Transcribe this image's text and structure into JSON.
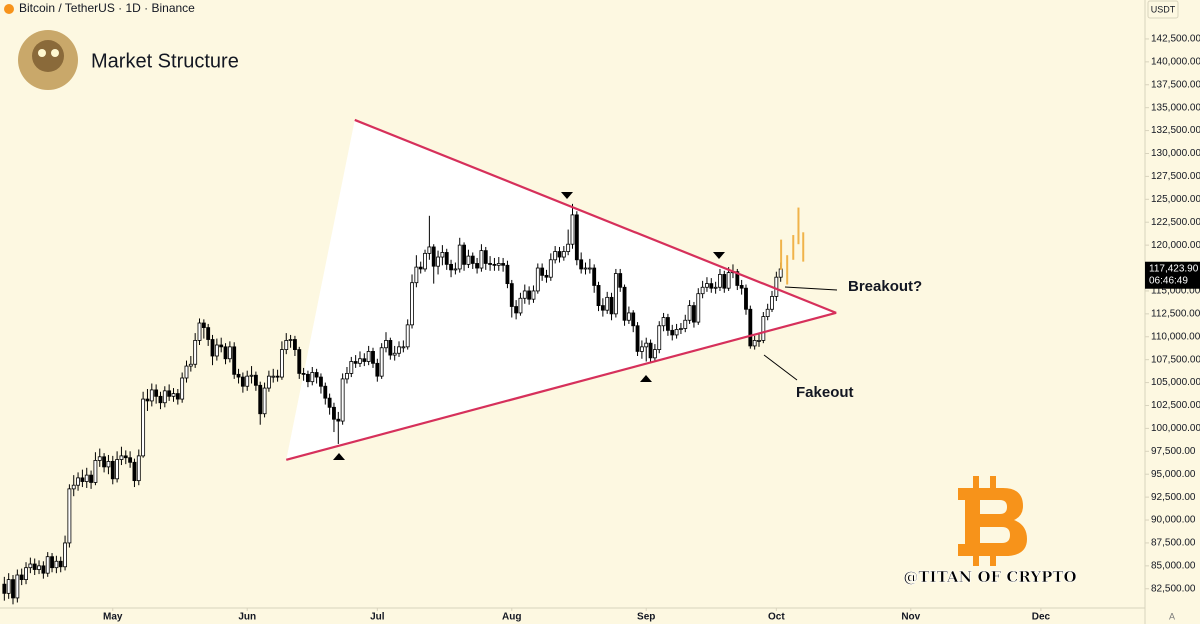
{
  "chart_data": {
    "type": "candlestick",
    "header": "Bitcoin / TetherUS · 1D · Binance",
    "title": "Market Structure",
    "currency": "USDT",
    "up_color": "#ffffff",
    "down_color": "#000000",
    "wick_color": "#000000",
    "background": "#fdf8e1",
    "grid": false,
    "xlim": [
      95,
      359
    ],
    "xticks": [
      {
        "value": 121,
        "label": "May"
      },
      {
        "value": 152,
        "label": "Jun"
      },
      {
        "value": 182,
        "label": "Jul"
      },
      {
        "value": 213,
        "label": "Aug"
      },
      {
        "value": 244,
        "label": "Sep"
      },
      {
        "value": 274,
        "label": "Oct"
      },
      {
        "value": 305,
        "label": "Nov"
      },
      {
        "value": 335,
        "label": "Dec"
      }
    ],
    "ylim": [
      80400,
      146750
    ],
    "yticks": [
      {
        "value": 82500,
        "label": "82,500.00"
      },
      {
        "value": 85000,
        "label": "85,000.00"
      },
      {
        "value": 87500,
        "label": "87,500.00"
      },
      {
        "value": 90000,
        "label": "90,000.00"
      },
      {
        "value": 92500,
        "label": "92,500.00"
      },
      {
        "value": 95000,
        "label": "95,000.00"
      },
      {
        "value": 97500,
        "label": "97,500.00"
      },
      {
        "value": 100000,
        "label": "100,000.00"
      },
      {
        "value": 102500,
        "label": "102,500.00"
      },
      {
        "value": 105000,
        "label": "105,000.00"
      },
      {
        "value": 107500,
        "label": "107,500.00"
      },
      {
        "value": 110000,
        "label": "110,000.00"
      },
      {
        "value": 112500,
        "label": "112,500.00"
      },
      {
        "value": 115000,
        "label": "115,000.00"
      },
      {
        "value": 117500,
        "label": "117,500.00"
      },
      {
        "value": 120000,
        "label": "120,000.00"
      },
      {
        "value": 122500,
        "label": "122,500.00"
      },
      {
        "value": 125000,
        "label": "125,000.00"
      },
      {
        "value": 127500,
        "label": "127,500.00"
      },
      {
        "value": 130000,
        "label": "130,000.00"
      },
      {
        "value": 132500,
        "label": "132,500.00"
      },
      {
        "value": 135000,
        "label": "135,000.00"
      },
      {
        "value": 137500,
        "label": "137,500.00"
      },
      {
        "value": 140000,
        "label": "140,000.00"
      },
      {
        "value": 142500,
        "label": "142,500.00"
      }
    ],
    "x": [
      96,
      97,
      98,
      99,
      100,
      101,
      102,
      103,
      104,
      105,
      106,
      107,
      108,
      109,
      110,
      111,
      112,
      113,
      114,
      115,
      116,
      117,
      118,
      119,
      120,
      121,
      122,
      123,
      124,
      125,
      126,
      127,
      128,
      129,
      130,
      131,
      132,
      133,
      134,
      135,
      136,
      137,
      138,
      139,
      140,
      141,
      142,
      143,
      144,
      145,
      146,
      147,
      148,
      149,
      150,
      151,
      152,
      153,
      154,
      155,
      156,
      157,
      158,
      159,
      160,
      161,
      162,
      163,
      164,
      165,
      166,
      167,
      168,
      169,
      170,
      171,
      172,
      173,
      174,
      175,
      176,
      177,
      178,
      179,
      180,
      181,
      182,
      183,
      184,
      185,
      186,
      187,
      188,
      189,
      190,
      191,
      192,
      193,
      194,
      195,
      196,
      197,
      198,
      199,
      200,
      201,
      202,
      203,
      204,
      205,
      206,
      207,
      208,
      209,
      210,
      211,
      212,
      213,
      214,
      215,
      216,
      217,
      218,
      219,
      220,
      221,
      222,
      223,
      224,
      225,
      226,
      227,
      228,
      229,
      230,
      231,
      232,
      233,
      234,
      235,
      236,
      237,
      238,
      239,
      240,
      241,
      242,
      243,
      244,
      245,
      246,
      247,
      248,
      249,
      250,
      251,
      252,
      253,
      254,
      255,
      256,
      257,
      258,
      259,
      260,
      261,
      262,
      263,
      264,
      265,
      266,
      267,
      268,
      269,
      270,
      271,
      272,
      273,
      274,
      275
    ],
    "open": [
      83000,
      82000,
      83500,
      81500,
      84000,
      83500,
      84800,
      85200,
      84600,
      85000,
      84200,
      86000,
      84800,
      85500,
      84900,
      87500,
      93400,
      93800,
      94600,
      94200,
      94900,
      94100,
      96500,
      96900,
      95800,
      96400,
      94500,
      96600,
      97000,
      96800,
      96300,
      94300,
      97000,
      103200,
      103000,
      104200,
      103500,
      102800,
      104100,
      103500,
      103800,
      103200,
      105500,
      106800,
      107000,
      109600,
      111500,
      111000,
      109700,
      107900,
      109100,
      108900,
      107600,
      108900,
      105900,
      105600,
      104600,
      105700,
      105800,
      104700,
      101600,
      104400,
      105700,
      105700,
      105600,
      108600,
      109600,
      109700,
      108600,
      106000,
      105900,
      105100,
      106100,
      105600,
      104600,
      103300,
      102300,
      101000,
      100800,
      105400,
      106000,
      107300,
      107100,
      107600,
      107300,
      108400,
      107100,
      105700,
      108800,
      109600,
      108000,
      108200,
      108900,
      108900,
      111300,
      115900,
      117600,
      117400,
      119100,
      119800,
      117700,
      118700,
      119200,
      117900,
      117300,
      117400,
      120000,
      117900,
      118800,
      118000,
      117500,
      119400,
      118000,
      117900,
      117800,
      118000,
      117800,
      115800,
      113300,
      112600,
      114200,
      115000,
      114100,
      115000,
      117500,
      116700,
      116500,
      118400,
      119300,
      118700,
      119300,
      120100,
      123300,
      118400,
      117400,
      117500,
      117500,
      115600,
      113400,
      112900,
      114300,
      112500,
      116900,
      115400,
      111800,
      112600,
      111200,
      108400,
      108900,
      109300,
      107700,
      108600,
      111200,
      112100,
      110700,
      110200,
      110800,
      110900,
      111800,
      113400,
      111600,
      114700,
      115400,
      115800,
      115300,
      115400,
      116800,
      115300,
      117000,
      117100,
      115600,
      115300,
      113000,
      109000,
      109600,
      109600,
      112200,
      113000,
      114400,
      116500
    ],
    "high": [
      83800,
      84200,
      84000,
      84600,
      84700,
      85400,
      85900,
      85800,
      85600,
      85500,
      86500,
      86400,
      86100,
      86000,
      88300,
      93900,
      94900,
      95200,
      95500,
      95700,
      95400,
      97400,
      97800,
      97300,
      97100,
      97000,
      97500,
      98000,
      97600,
      97500,
      96700,
      97700,
      104000,
      104300,
      104900,
      104800,
      104000,
      104600,
      104800,
      104400,
      104300,
      106100,
      107400,
      107900,
      110400,
      112000,
      111900,
      111400,
      110200,
      109800,
      109900,
      109300,
      109500,
      109400,
      106500,
      106100,
      106300,
      106800,
      106200,
      105100,
      105000,
      106300,
      106500,
      106400,
      109500,
      110400,
      110200,
      110100,
      108900,
      106600,
      106300,
      106700,
      106500,
      106000,
      105000,
      103800,
      102800,
      101800,
      106000,
      106700,
      107800,
      108000,
      108400,
      108200,
      109000,
      108800,
      107600,
      109300,
      110500,
      109900,
      109000,
      109500,
      109600,
      111900,
      116800,
      118900,
      118200,
      119500,
      123200,
      120100,
      119400,
      120000,
      119600,
      118400,
      118100,
      120800,
      120300,
      119500,
      119200,
      118600,
      120100,
      119800,
      118800,
      118600,
      118700,
      118600,
      118300,
      116200,
      114000,
      114800,
      115700,
      115500,
      115600,
      118000,
      118000,
      117300,
      119100,
      119900,
      119800,
      119900,
      121700,
      124500,
      123700,
      119200,
      118100,
      118500,
      117900,
      116000,
      114200,
      114900,
      114800,
      117400,
      117400,
      115700,
      113300,
      112900,
      111600,
      109600,
      109900,
      109700,
      109200,
      111700,
      112600,
      112500,
      111300,
      111400,
      111500,
      112400,
      114000,
      113800,
      115300,
      116100,
      116500,
      116400,
      116000,
      117400,
      117200,
      117600,
      117900,
      117400,
      116200,
      115700,
      113400,
      110100,
      110400,
      112700,
      113600,
      115000,
      117100,
      118100
    ],
    "low": [
      81200,
      81400,
      80800,
      81000,
      82900,
      83000,
      84200,
      84000,
      84100,
      83600,
      83800,
      84300,
      84200,
      84300,
      84500,
      87000,
      92600,
      93200,
      93600,
      93500,
      93400,
      93800,
      95800,
      95200,
      95000,
      93900,
      94100,
      96000,
      96100,
      95700,
      93600,
      93800,
      96800,
      101900,
      102400,
      102700,
      102100,
      102300,
      103000,
      102900,
      102600,
      102800,
      105000,
      106200,
      106600,
      109100,
      109800,
      109000,
      106900,
      107400,
      108300,
      107000,
      107200,
      105400,
      104900,
      103900,
      104100,
      104900,
      104100,
      100400,
      101200,
      104000,
      105000,
      105100,
      105300,
      108100,
      108800,
      107900,
      105400,
      105200,
      104500,
      104700,
      104900,
      103800,
      102600,
      101500,
      99600,
      98300,
      100400,
      104900,
      105600,
      106600,
      106700,
      106800,
      106900,
      106600,
      105100,
      105400,
      108300,
      107500,
      107400,
      107800,
      108300,
      108600,
      110900,
      115400,
      116900,
      117100,
      118400,
      115800,
      116800,
      117800,
      117300,
      116500,
      116800,
      117000,
      117200,
      117500,
      117400,
      116900,
      117100,
      117300,
      117200,
      117200,
      117200,
      117100,
      115300,
      112100,
      111900,
      112300,
      113600,
      113500,
      113700,
      114700,
      116100,
      115900,
      116100,
      118000,
      118100,
      118300,
      118900,
      119600,
      117800,
      116900,
      116800,
      116900,
      114800,
      112800,
      112200,
      112500,
      111800,
      112100,
      114900,
      111200,
      111400,
      110500,
      107900,
      107600,
      107300,
      107300,
      107300,
      108200,
      110600,
      110100,
      109600,
      109800,
      110300,
      110500,
      111400,
      111000,
      111300,
      114200,
      114900,
      114800,
      114700,
      115000,
      114800,
      115000,
      116400,
      115100,
      114600,
      112400,
      108700,
      108600,
      108900,
      109300,
      111800,
      112700,
      113900,
      116000
    ],
    "close": [
      82000,
      83500,
      81500,
      84000,
      83500,
      84800,
      85200,
      84600,
      85000,
      84200,
      86000,
      84800,
      85500,
      84900,
      87500,
      93400,
      93800,
      94600,
      94200,
      94900,
      94100,
      96500,
      96900,
      95800,
      96400,
      94500,
      96600,
      97000,
      96800,
      96300,
      94300,
      97000,
      103200,
      103000,
      104200,
      103500,
      102800,
      104100,
      103500,
      103800,
      103200,
      105500,
      106800,
      107000,
      109600,
      111500,
      111000,
      109700,
      107900,
      109100,
      108900,
      107600,
      108900,
      105900,
      105600,
      104600,
      105700,
      105800,
      104700,
      101600,
      104400,
      105700,
      105700,
      105600,
      108600,
      109600,
      109700,
      108600,
      106000,
      105900,
      105100,
      106100,
      105600,
      104600,
      103300,
      102300,
      101000,
      100800,
      105400,
      106000,
      107300,
      107100,
      107600,
      107300,
      108400,
      107100,
      105700,
      108800,
      109600,
      108000,
      108200,
      108900,
      108900,
      111300,
      115900,
      117600,
      117400,
      119100,
      119800,
      117700,
      118700,
      119200,
      117900,
      117300,
      117400,
      120000,
      117900,
      118800,
      118000,
      117500,
      119400,
      118000,
      117900,
      117800,
      118000,
      117800,
      115800,
      113300,
      112600,
      114200,
      115000,
      114100,
      115000,
      117500,
      116700,
      116500,
      118400,
      119300,
      118700,
      119300,
      120100,
      123300,
      118400,
      117400,
      117500,
      117500,
      115600,
      113400,
      112900,
      114300,
      112500,
      116900,
      115400,
      111800,
      112600,
      111200,
      108400,
      108900,
      109300,
      107700,
      108600,
      111200,
      112100,
      110700,
      110200,
      110800,
      110900,
      111800,
      113400,
      111600,
      114700,
      115400,
      115800,
      115300,
      115400,
      116800,
      115300,
      117000,
      117100,
      115600,
      115300,
      113000,
      109000,
      109600,
      109600,
      112200,
      113000,
      114400,
      116500,
      117400
    ],
    "trendline_color": "#d6305b",
    "trendlines": [
      {
        "x": [
          176.8,
          287.8
        ],
        "y": [
          133660,
          112610
        ]
      },
      {
        "x": [
          161,
          287.8
        ],
        "y": [
          96570,
          112610
        ]
      }
    ],
    "projection": {
      "color": "#f0b34a",
      "x": [
        275.1,
        276.5,
        277.9,
        279.1,
        280.2
      ],
      "high": [
        120600,
        118900,
        121100,
        124100,
        121400
      ],
      "low": [
        117300,
        115700,
        118400,
        120100,
        118200
      ]
    },
    "last_price": {
      "value": 117423.9,
      "label": "117,423.90"
    },
    "countdown": "06:46:49",
    "annotations": [
      "Breakout?",
      "Fakeout"
    ],
    "watermark": "@TITAN OF CRYPTO"
  }
}
